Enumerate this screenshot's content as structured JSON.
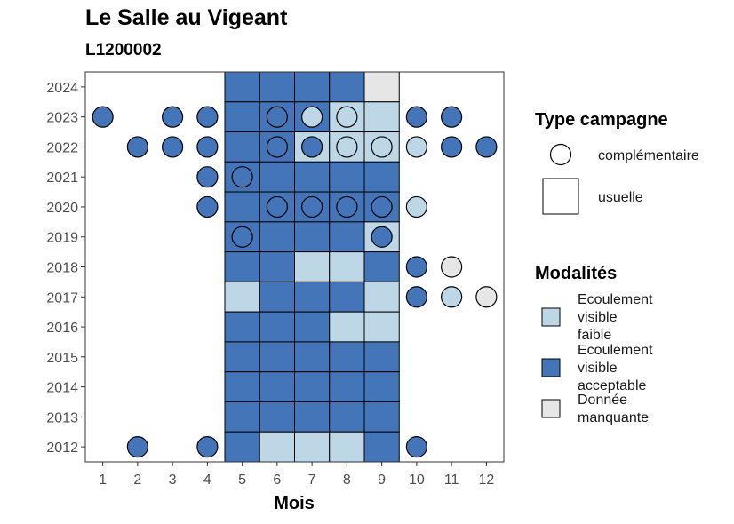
{
  "chart_data": {
    "type": "heatmap",
    "title": "Le Salle au Vigeant",
    "subtitle": "L1200002",
    "xlabel": "Mois",
    "ylabel": "",
    "x_ticks": [
      1,
      2,
      3,
      4,
      5,
      6,
      7,
      8,
      9,
      10,
      11,
      12
    ],
    "y_ticks": [
      2012,
      2013,
      2014,
      2015,
      2016,
      2017,
      2018,
      2019,
      2020,
      2021,
      2022,
      2023,
      2024
    ],
    "xlim": [
      0.5,
      12.5
    ],
    "ylim": [
      2011.5,
      2024.5
    ],
    "grid": false,
    "colors": {
      "faible": "#BDD7E7",
      "acceptable": "#4575B9",
      "manquante": "#E6E6E6",
      "outline": "#000000"
    },
    "legend_type": {
      "title": "Type campagne",
      "position": "right",
      "items": [
        {
          "key": "complementaire",
          "label": "complémentaire",
          "shape": "circle"
        },
        {
          "key": "usuelle",
          "label": "usuelle",
          "shape": "square"
        }
      ]
    },
    "legend_modalites": {
      "title": "Modalités",
      "position": "right",
      "items": [
        {
          "key": "faible",
          "lines": [
            "Ecoulement",
            "visible",
            "faible"
          ]
        },
        {
          "key": "acceptable",
          "lines": [
            "Ecoulement",
            "visible",
            "acceptable"
          ]
        },
        {
          "key": "manquante",
          "lines": [
            "Donnée",
            "manquante"
          ]
        }
      ]
    },
    "usuelle": [
      {
        "year": 2024,
        "months": {
          "5": "acceptable",
          "6": "acceptable",
          "7": "acceptable",
          "8": "acceptable",
          "9": "manquante"
        }
      },
      {
        "year": 2023,
        "months": {
          "5": "acceptable",
          "6": "acceptable",
          "7": "acceptable",
          "8": "faible",
          "9": "faible"
        }
      },
      {
        "year": 2022,
        "months": {
          "5": "acceptable",
          "6": "acceptable",
          "7": "faible",
          "8": "faible",
          "9": "faible"
        }
      },
      {
        "year": 2021,
        "months": {
          "5": "acceptable",
          "6": "acceptable",
          "7": "acceptable",
          "8": "acceptable",
          "9": "acceptable"
        }
      },
      {
        "year": 2020,
        "months": {
          "5": "acceptable",
          "6": "acceptable",
          "7": "acceptable",
          "8": "acceptable",
          "9": "acceptable"
        }
      },
      {
        "year": 2019,
        "months": {
          "5": "acceptable",
          "6": "acceptable",
          "7": "acceptable",
          "8": "acceptable",
          "9": "faible"
        }
      },
      {
        "year": 2018,
        "months": {
          "5": "acceptable",
          "6": "acceptable",
          "7": "faible",
          "8": "faible",
          "9": "acceptable"
        }
      },
      {
        "year": 2017,
        "months": {
          "5": "faible",
          "6": "acceptable",
          "7": "acceptable",
          "8": "acceptable",
          "9": "faible"
        }
      },
      {
        "year": 2016,
        "months": {
          "5": "acceptable",
          "6": "acceptable",
          "7": "acceptable",
          "8": "faible",
          "9": "faible"
        }
      },
      {
        "year": 2015,
        "months": {
          "5": "acceptable",
          "6": "acceptable",
          "7": "acceptable",
          "8": "acceptable",
          "9": "acceptable"
        }
      },
      {
        "year": 2014,
        "months": {
          "5": "acceptable",
          "6": "acceptable",
          "7": "acceptable",
          "8": "acceptable",
          "9": "acceptable"
        }
      },
      {
        "year": 2013,
        "months": {
          "5": "acceptable",
          "6": "acceptable",
          "7": "acceptable",
          "8": "acceptable",
          "9": "acceptable"
        }
      },
      {
        "year": 2012,
        "months": {
          "5": "acceptable",
          "6": "faible",
          "7": "faible",
          "8": "faible",
          "9": "acceptable"
        }
      }
    ],
    "complementaire": [
      {
        "year": 2023,
        "months": {
          "1": "acceptable",
          "3": "acceptable",
          "4": "acceptable",
          "6": "acceptable",
          "7": "faible",
          "8": "faible",
          "10": "acceptable",
          "11": "acceptable"
        }
      },
      {
        "year": 2022,
        "months": {
          "2": "acceptable",
          "3": "acceptable",
          "4": "acceptable",
          "6": "acceptable",
          "7": "acceptable",
          "8": "faible",
          "9": "faible",
          "10": "faible",
          "11": "acceptable",
          "12": "acceptable"
        }
      },
      {
        "year": 2021,
        "months": {
          "4": "acceptable",
          "5": "acceptable"
        }
      },
      {
        "year": 2020,
        "months": {
          "4": "acceptable",
          "6": "acceptable",
          "7": "acceptable",
          "8": "acceptable",
          "9": "acceptable",
          "10": "faible"
        }
      },
      {
        "year": 2019,
        "months": {
          "5": "acceptable",
          "9": "acceptable"
        }
      },
      {
        "year": 2018,
        "months": {
          "10": "acceptable",
          "11": "manquante"
        }
      },
      {
        "year": 2017,
        "months": {
          "10": "acceptable",
          "11": "faible",
          "12": "manquante"
        }
      },
      {
        "year": 2012,
        "months": {
          "2": "acceptable",
          "4": "acceptable",
          "10": "acceptable"
        }
      }
    ]
  }
}
